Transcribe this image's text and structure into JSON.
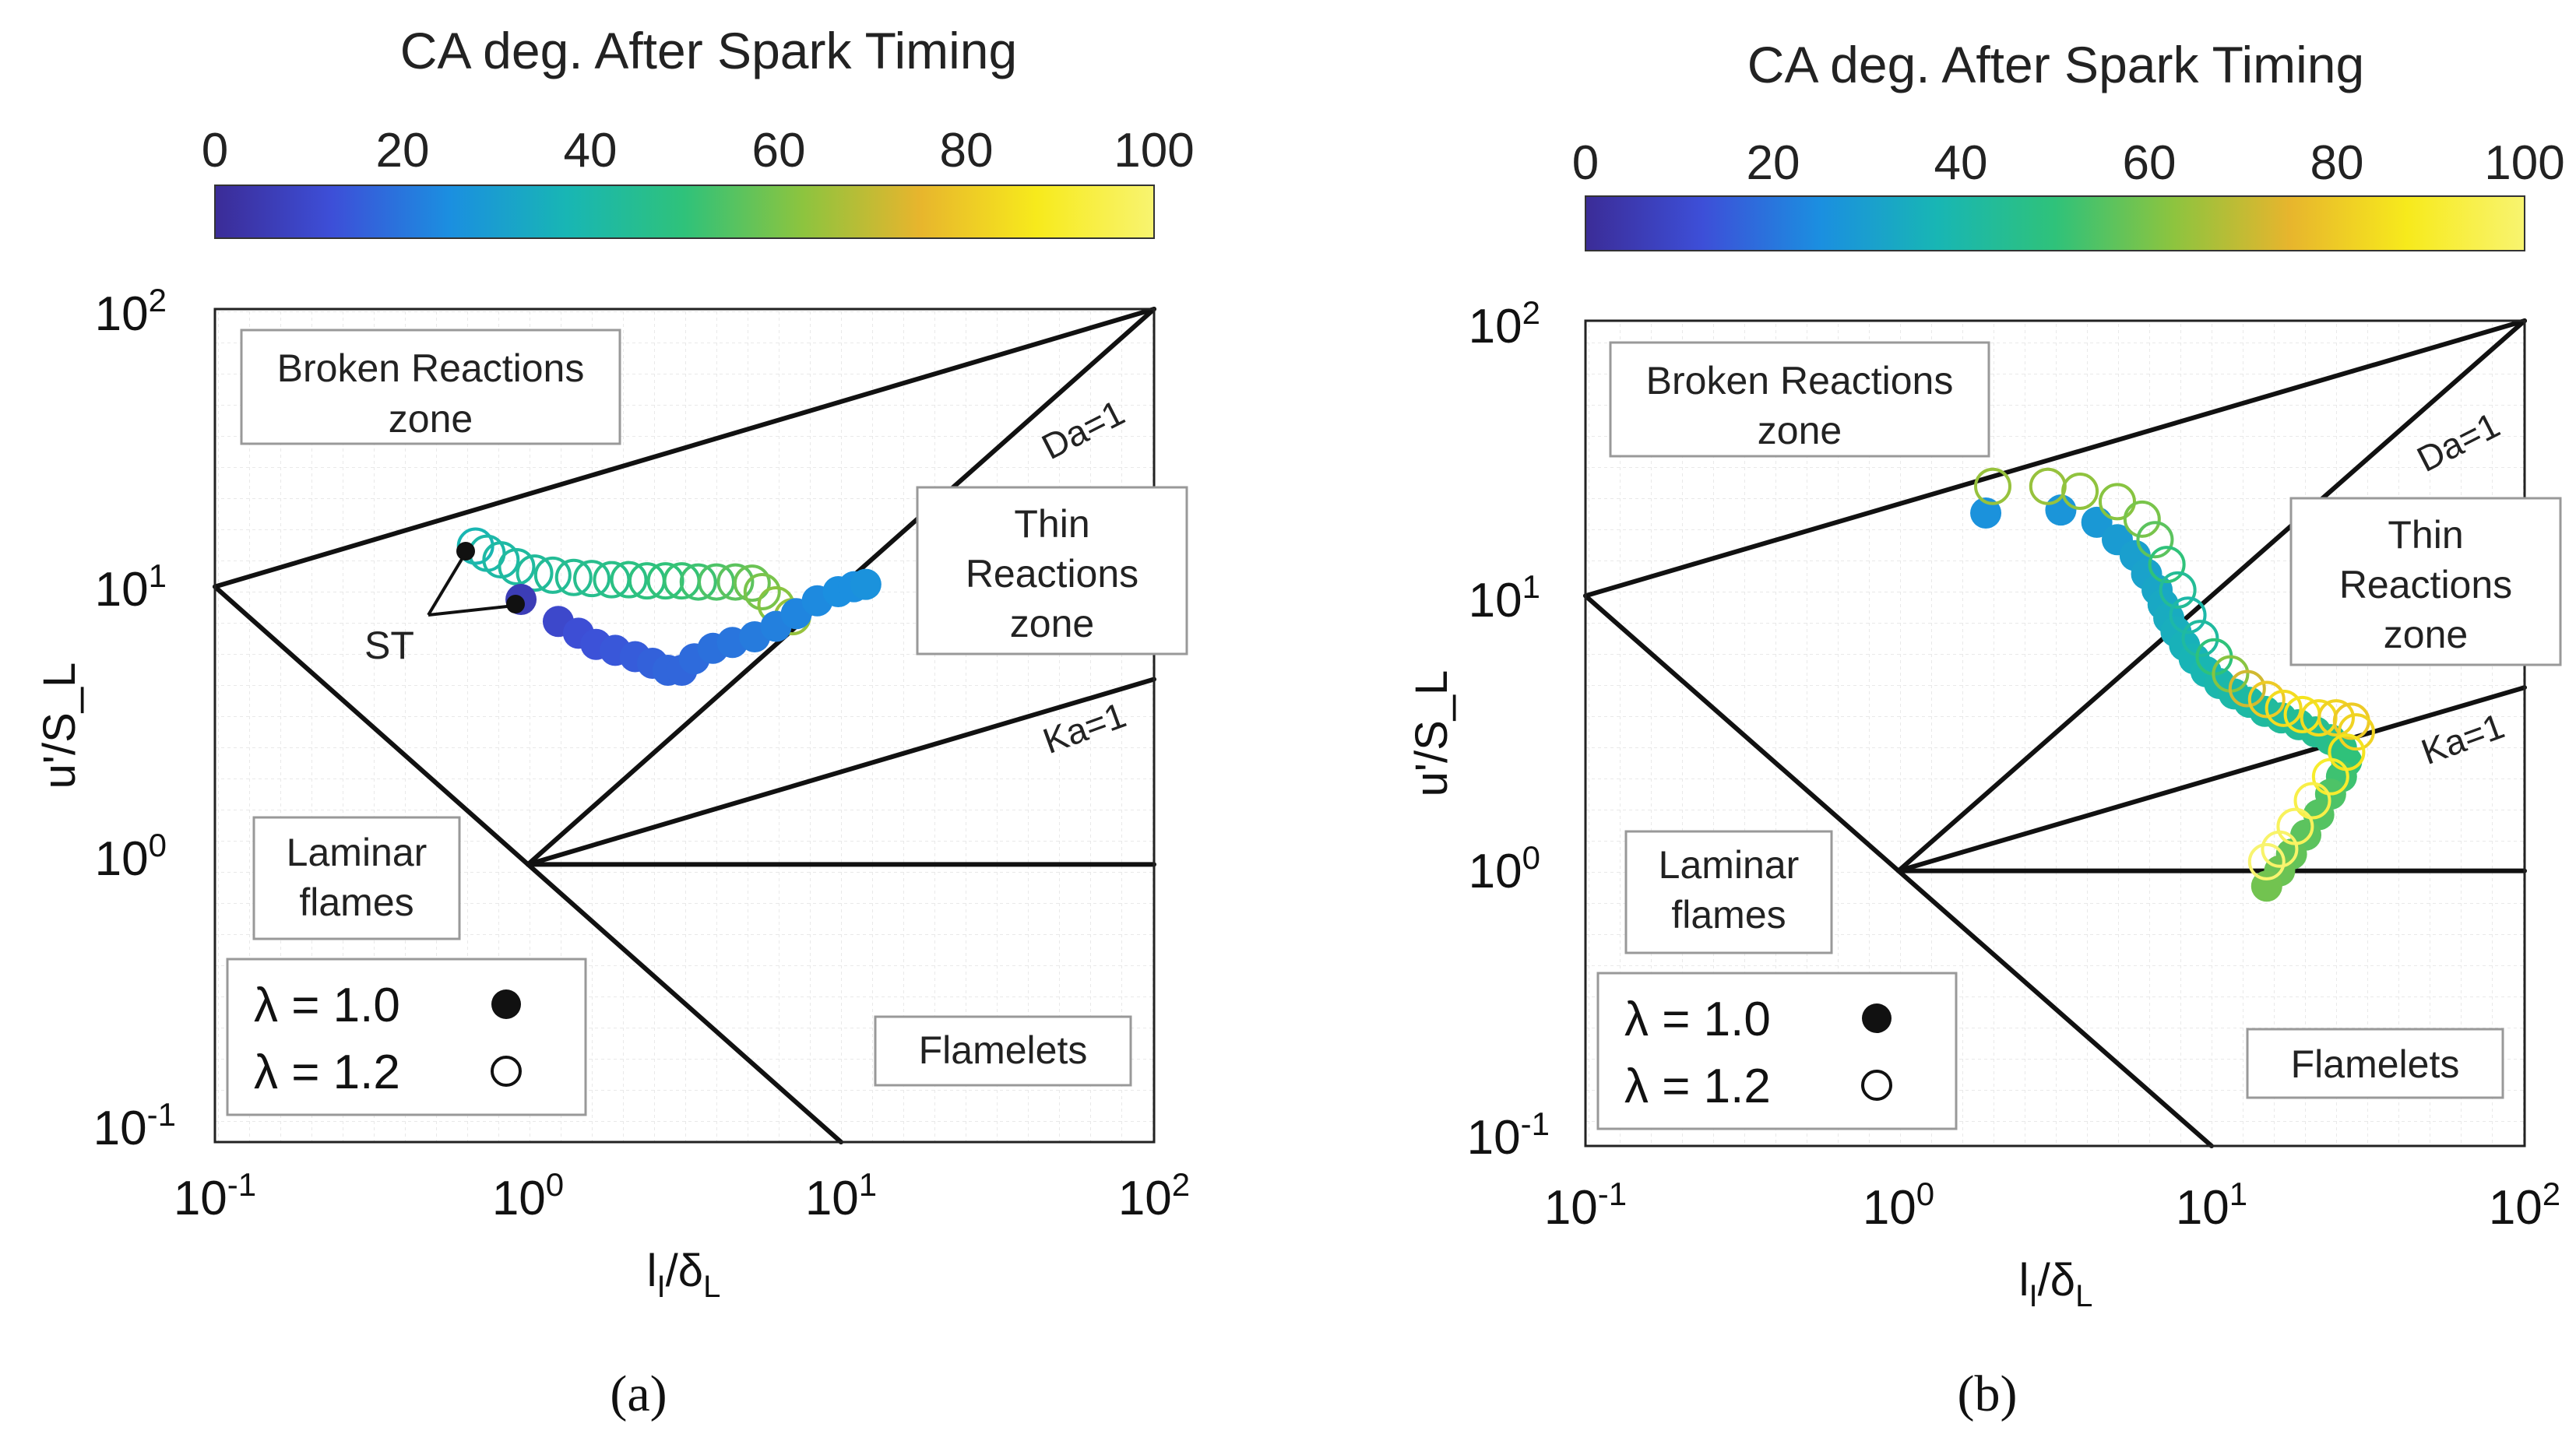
{
  "chart_data": [
    {
      "type": "scatter",
      "panel_label": "(a)",
      "colorbar": {
        "title": "CA deg. After Spark Timing",
        "range": [
          0,
          100
        ],
        "ticks": [
          "0",
          "20",
          "40",
          "60",
          "80",
          "100"
        ],
        "colors": [
          "#3b2c97",
          "#3d4fd8",
          "#1b8fe0",
          "#18b6b4",
          "#2fc27a",
          "#8cc43f",
          "#e7b52d",
          "#f7ea1c",
          "#f8f470"
        ]
      },
      "xlabel": "l_I/δ_L",
      "ylabel": "u'/S_L",
      "xlim": [
        0.1,
        100
      ],
      "ylim": [
        0.1,
        100
      ],
      "x_ticks": [
        {
          "base": "10",
          "exp": "-1"
        },
        {
          "base": "10",
          "exp": "0"
        },
        {
          "base": "10",
          "exp": "1"
        },
        {
          "base": "10",
          "exp": "2"
        }
      ],
      "y_ticks": [
        {
          "base": "10",
          "exp": "-1"
        },
        {
          "base": "10",
          "exp": "0"
        },
        {
          "base": "10",
          "exp": "1"
        },
        {
          "base": "10",
          "exp": "2"
        }
      ],
      "regions": {
        "broken": [
          "Broken Reactions",
          "zone"
        ],
        "thin": [
          "Thin",
          "Reactions",
          "zone"
        ],
        "laminar": [
          "Laminar",
          "flames"
        ],
        "flamelets": "Flamelets"
      },
      "line_labels": {
        "da": "Da=1",
        "ka": "Ka=1"
      },
      "legend": [
        {
          "label": "λ = 1.0",
          "marker": "filled"
        },
        {
          "label": "λ = 1.2",
          "marker": "open"
        }
      ],
      "annotation": "ST",
      "series": [
        {
          "name": "λ = 1.0",
          "marker": "filled",
          "points": [
            {
              "x": 0.95,
              "y": 9.0,
              "ca": 6
            },
            {
              "x": 1.25,
              "y": 7.5,
              "ca": 10
            },
            {
              "x": 1.45,
              "y": 6.8,
              "ca": 12
            },
            {
              "x": 1.65,
              "y": 6.2,
              "ca": 13
            },
            {
              "x": 1.9,
              "y": 5.9,
              "ca": 14
            },
            {
              "x": 2.2,
              "y": 5.6,
              "ca": 15
            },
            {
              "x": 2.5,
              "y": 5.3,
              "ca": 16
            },
            {
              "x": 2.8,
              "y": 5.0,
              "ca": 17
            },
            {
              "x": 3.1,
              "y": 5.0,
              "ca": 17
            },
            {
              "x": 3.4,
              "y": 5.5,
              "ca": 18
            },
            {
              "x": 3.9,
              "y": 6.0,
              "ca": 19
            },
            {
              "x": 4.5,
              "y": 6.3,
              "ca": 20
            },
            {
              "x": 5.3,
              "y": 6.6,
              "ca": 21
            },
            {
              "x": 6.2,
              "y": 7.2,
              "ca": 22
            },
            {
              "x": 7.2,
              "y": 8.0,
              "ca": 23
            },
            {
              "x": 8.4,
              "y": 8.9,
              "ca": 24
            },
            {
              "x": 9.8,
              "y": 9.6,
              "ca": 25
            },
            {
              "x": 11.0,
              "y": 10.0,
              "ca": 25
            },
            {
              "x": 12.0,
              "y": 10.2,
              "ca": 26
            }
          ]
        },
        {
          "name": "λ = 1.2",
          "marker": "open",
          "points": [
            {
              "x": 0.68,
              "y": 14.0,
              "ca": 38
            },
            {
              "x": 0.74,
              "y": 13.2,
              "ca": 40
            },
            {
              "x": 0.82,
              "y": 12.5,
              "ca": 41
            },
            {
              "x": 0.92,
              "y": 11.8,
              "ca": 42
            },
            {
              "x": 1.05,
              "y": 11.2,
              "ca": 43
            },
            {
              "x": 1.2,
              "y": 11.0,
              "ca": 44
            },
            {
              "x": 1.4,
              "y": 10.8,
              "ca": 45
            },
            {
              "x": 1.6,
              "y": 10.7,
              "ca": 46
            },
            {
              "x": 1.85,
              "y": 10.6,
              "ca": 47
            },
            {
              "x": 2.1,
              "y": 10.6,
              "ca": 48
            },
            {
              "x": 2.4,
              "y": 10.5,
              "ca": 49
            },
            {
              "x": 2.75,
              "y": 10.5,
              "ca": 50
            },
            {
              "x": 3.1,
              "y": 10.5,
              "ca": 51
            },
            {
              "x": 3.5,
              "y": 10.4,
              "ca": 52
            },
            {
              "x": 4.0,
              "y": 10.4,
              "ca": 54
            },
            {
              "x": 4.6,
              "y": 10.4,
              "ca": 56
            },
            {
              "x": 5.2,
              "y": 10.3,
              "ca": 58
            },
            {
              "x": 5.6,
              "y": 9.6,
              "ca": 60
            },
            {
              "x": 6.2,
              "y": 8.6,
              "ca": 62
            },
            {
              "x": 7.0,
              "y": 7.8,
              "ca": 64
            }
          ]
        }
      ]
    },
    {
      "type": "scatter",
      "panel_label": "(b)",
      "colorbar": {
        "title": "CA deg. After Spark Timing",
        "range": [
          0,
          100
        ],
        "ticks": [
          "0",
          "20",
          "40",
          "60",
          "80",
          "100"
        ],
        "colors": [
          "#3b2c97",
          "#3d4fd8",
          "#1b8fe0",
          "#18b6b4",
          "#2fc27a",
          "#8cc43f",
          "#e7b52d",
          "#f7ea1c",
          "#f8f470"
        ]
      },
      "xlabel": "l_I/δ_L",
      "ylabel": "u'/S_L",
      "xlim": [
        0.1,
        100
      ],
      "ylim": [
        0.1,
        100
      ],
      "x_ticks": [
        {
          "base": "10",
          "exp": "-1"
        },
        {
          "base": "10",
          "exp": "0"
        },
        {
          "base": "10",
          "exp": "1"
        },
        {
          "base": "10",
          "exp": "2"
        }
      ],
      "y_ticks": [
        {
          "base": "10",
          "exp": "-1"
        },
        {
          "base": "10",
          "exp": "0"
        },
        {
          "base": "10",
          "exp": "1"
        },
        {
          "base": "10",
          "exp": "2"
        }
      ],
      "regions": {
        "broken": [
          "Broken Reactions",
          "zone"
        ],
        "thin": [
          "Thin",
          "Reactions",
          "zone"
        ],
        "laminar": [
          "Laminar",
          "flames"
        ],
        "flamelets": "Flamelets"
      },
      "line_labels": {
        "da": "Da=1",
        "ka": "Ka=1"
      },
      "legend": [
        {
          "label": "λ = 1.0",
          "marker": "filled"
        },
        {
          "label": "λ = 1.2",
          "marker": "open"
        }
      ],
      "series": [
        {
          "name": "λ = 1.0",
          "marker": "filled",
          "points": [
            {
              "x": 1.9,
              "y": 20.0,
              "ca": 26
            },
            {
              "x": 3.3,
              "y": 20.5,
              "ca": 27
            },
            {
              "x": 4.3,
              "y": 18.5,
              "ca": 28
            },
            {
              "x": 5.0,
              "y": 16.0,
              "ca": 29
            },
            {
              "x": 5.7,
              "y": 14.0,
              "ca": 30
            },
            {
              "x": 6.2,
              "y": 12.0,
              "ca": 31
            },
            {
              "x": 6.7,
              "y": 10.5,
              "ca": 32
            },
            {
              "x": 7.0,
              "y": 9.3,
              "ca": 33
            },
            {
              "x": 7.3,
              "y": 8.3,
              "ca": 34
            },
            {
              "x": 7.7,
              "y": 7.4,
              "ca": 35
            },
            {
              "x": 8.2,
              "y": 6.6,
              "ca": 36
            },
            {
              "x": 8.8,
              "y": 5.9,
              "ca": 37
            },
            {
              "x": 9.6,
              "y": 5.3,
              "ca": 38
            },
            {
              "x": 10.6,
              "y": 4.8,
              "ca": 39
            },
            {
              "x": 11.8,
              "y": 4.4,
              "ca": 40
            },
            {
              "x": 13.2,
              "y": 4.1,
              "ca": 41
            },
            {
              "x": 14.8,
              "y": 3.8,
              "ca": 42
            },
            {
              "x": 16.7,
              "y": 3.6,
              "ca": 43
            },
            {
              "x": 19.0,
              "y": 3.4,
              "ca": 44
            },
            {
              "x": 21.5,
              "y": 3.2,
              "ca": 45
            },
            {
              "x": 24.0,
              "y": 3.0,
              "ca": 46
            },
            {
              "x": 26.0,
              "y": 2.8,
              "ca": 48
            },
            {
              "x": 27.0,
              "y": 2.5,
              "ca": 50
            },
            {
              "x": 26.0,
              "y": 2.2,
              "ca": 52
            },
            {
              "x": 24.0,
              "y": 1.9,
              "ca": 54
            },
            {
              "x": 22.0,
              "y": 1.6,
              "ca": 55
            },
            {
              "x": 20.0,
              "y": 1.35,
              "ca": 56
            },
            {
              "x": 18.0,
              "y": 1.15,
              "ca": 57
            },
            {
              "x": 16.5,
              "y": 1.0,
              "ca": 58
            },
            {
              "x": 15.0,
              "y": 0.88,
              "ca": 59
            }
          ]
        },
        {
          "name": "λ = 1.2",
          "marker": "open",
          "points": [
            {
              "x": 2.0,
              "y": 25.0,
              "ca": 64
            },
            {
              "x": 3.0,
              "y": 25.0,
              "ca": 64
            },
            {
              "x": 3.8,
              "y": 24.0,
              "ca": 63
            },
            {
              "x": 5.0,
              "y": 22.0,
              "ca": 62
            },
            {
              "x": 6.0,
              "y": 19.0,
              "ca": 60
            },
            {
              "x": 6.6,
              "y": 16.0,
              "ca": 56
            },
            {
              "x": 7.2,
              "y": 13.0,
              "ca": 50
            },
            {
              "x": 7.8,
              "y": 10.5,
              "ca": 44
            },
            {
              "x": 8.4,
              "y": 8.5,
              "ca": 40
            },
            {
              "x": 9.2,
              "y": 7.0,
              "ca": 42
            },
            {
              "x": 10.2,
              "y": 6.0,
              "ca": 50
            },
            {
              "x": 11.5,
              "y": 5.2,
              "ca": 62
            },
            {
              "x": 13.0,
              "y": 4.6,
              "ca": 72
            },
            {
              "x": 15.0,
              "y": 4.2,
              "ca": 80
            },
            {
              "x": 17.0,
              "y": 3.9,
              "ca": 84
            },
            {
              "x": 19.5,
              "y": 3.7,
              "ca": 86
            },
            {
              "x": 22.0,
              "y": 3.6,
              "ca": 84
            },
            {
              "x": 25.0,
              "y": 3.6,
              "ca": 82
            },
            {
              "x": 28.0,
              "y": 3.5,
              "ca": 80
            },
            {
              "x": 29.0,
              "y": 3.2,
              "ca": 82
            },
            {
              "x": 27.0,
              "y": 2.7,
              "ca": 86
            },
            {
              "x": 24.0,
              "y": 2.2,
              "ca": 90
            },
            {
              "x": 21.0,
              "y": 1.8,
              "ca": 94
            },
            {
              "x": 18.5,
              "y": 1.45,
              "ca": 97
            },
            {
              "x": 16.5,
              "y": 1.2,
              "ca": 99
            },
            {
              "x": 15.0,
              "y": 1.08,
              "ca": 100
            }
          ]
        }
      ]
    }
  ]
}
